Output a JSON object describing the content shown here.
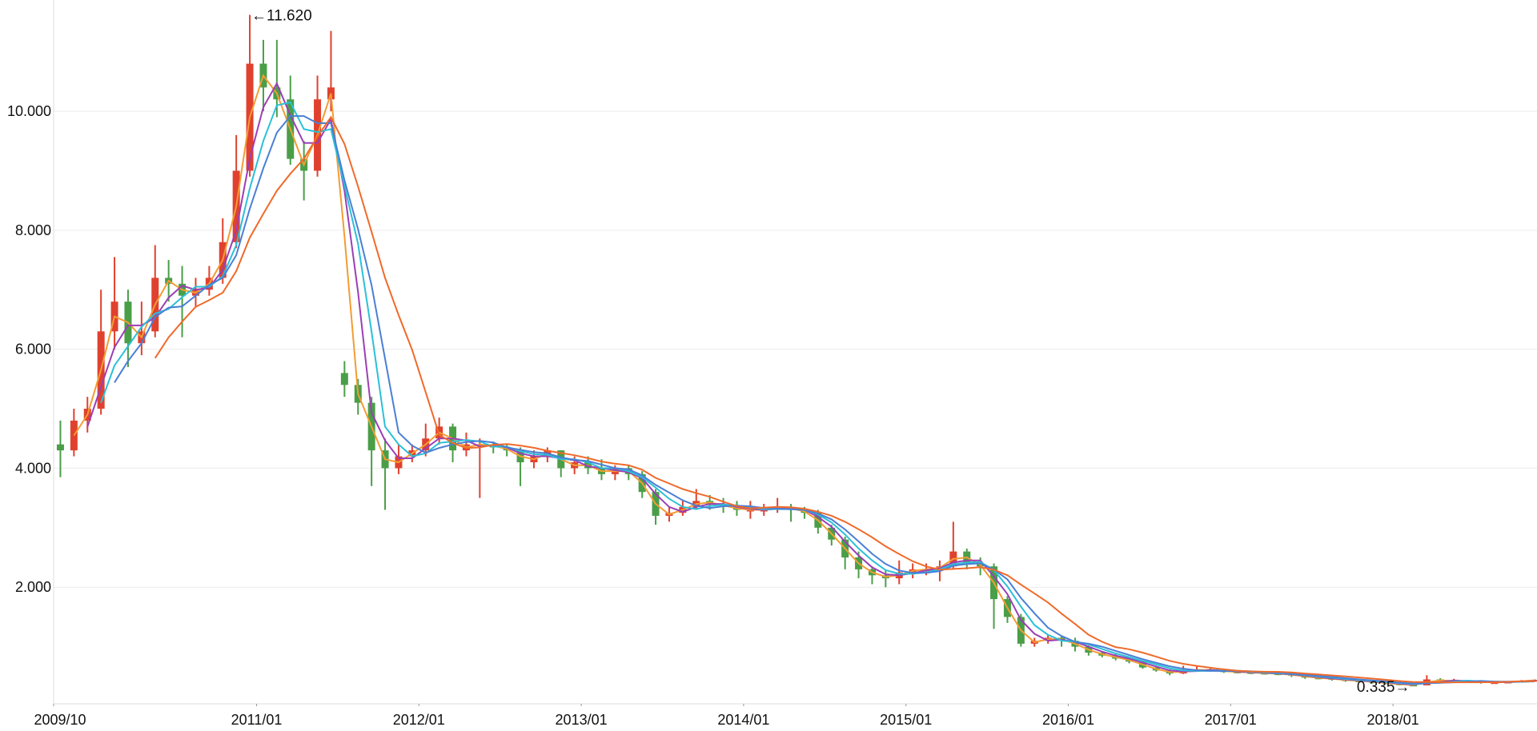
{
  "chart_data": {
    "type": "candlestick",
    "title": "",
    "xlabel": "",
    "ylabel": "",
    "ylim": [
      0.04,
      11.87
    ],
    "grid": true,
    "legend": "none",
    "y_ticks": [
      "2.000",
      "4.000",
      "6.000",
      "8.000",
      "10.000"
    ],
    "y_tick_values": [
      2,
      4,
      6,
      8,
      10
    ],
    "x_ticks": [
      "2009/10",
      "2011/01",
      "2012/01",
      "2013/01",
      "2014/01",
      "2015/01",
      "2016/01",
      "2017/01",
      "2018/01"
    ],
    "columns": [
      "date",
      "open",
      "high",
      "low",
      "close"
    ],
    "candles": [
      [
        "2009/10",
        4.4,
        4.8,
        3.85,
        4.3
      ],
      [
        "2009/11",
        4.3,
        5.0,
        4.2,
        4.8
      ],
      [
        "2009/12",
        4.8,
        5.2,
        4.6,
        5.0
      ],
      [
        "2010/01",
        5.0,
        7.0,
        4.9,
        6.3
      ],
      [
        "2010/02",
        6.3,
        7.55,
        6.0,
        6.8
      ],
      [
        "2010/03",
        6.8,
        7.0,
        5.7,
        6.1
      ],
      [
        "2010/04",
        6.1,
        6.8,
        5.9,
        6.3
      ],
      [
        "2010/05",
        6.3,
        7.75,
        6.2,
        7.2
      ],
      [
        "2010/06",
        7.2,
        7.5,
        6.8,
        7.1
      ],
      [
        "2010/07",
        7.1,
        7.4,
        6.2,
        6.9
      ],
      [
        "2010/08",
        6.9,
        7.2,
        6.7,
        7.0
      ],
      [
        "2010/09",
        7.0,
        7.4,
        6.9,
        7.2
      ],
      [
        "2010/10",
        7.2,
        8.2,
        7.1,
        7.8
      ],
      [
        "2010/11",
        7.8,
        9.6,
        7.7,
        9.0
      ],
      [
        "2010/12",
        9.0,
        11.62,
        8.9,
        10.8
      ],
      [
        "2011/01",
        10.8,
        11.2,
        10.0,
        10.4
      ],
      [
        "2011/02",
        10.4,
        11.2,
        9.9,
        10.2
      ],
      [
        "2011/03",
        10.2,
        10.6,
        9.1,
        9.2
      ],
      [
        "2011/04",
        9.2,
        9.5,
        8.5,
        9.0
      ],
      [
        "2011/05",
        9.0,
        10.6,
        8.9,
        10.2
      ],
      [
        "2011/06",
        10.2,
        11.35,
        10.0,
        10.4
      ],
      [
        "2011/07",
        5.6,
        5.8,
        5.2,
        5.4
      ],
      [
        "2011/08",
        5.4,
        5.5,
        4.9,
        5.1
      ],
      [
        "2011/09",
        5.1,
        5.2,
        3.7,
        4.3
      ],
      [
        "2011/10",
        4.3,
        4.5,
        3.3,
        4.0
      ],
      [
        "2011/11",
        4.0,
        4.4,
        3.9,
        4.2
      ],
      [
        "2011/12",
        4.2,
        4.4,
        4.1,
        4.3
      ],
      [
        "2012/01",
        4.3,
        4.75,
        4.2,
        4.5
      ],
      [
        "2012/02",
        4.5,
        4.85,
        4.4,
        4.7
      ],
      [
        "2012/03",
        4.7,
        4.75,
        4.1,
        4.3
      ],
      [
        "2012/04",
        4.3,
        4.6,
        4.2,
        4.4
      ],
      [
        "2012/05",
        4.4,
        4.5,
        3.5,
        4.4
      ],
      [
        "2012/06",
        4.4,
        4.45,
        4.25,
        4.35
      ],
      [
        "2012/07",
        4.35,
        4.4,
        4.2,
        4.3
      ],
      [
        "2012/08",
        4.3,
        4.35,
        3.7,
        4.1
      ],
      [
        "2012/09",
        4.1,
        4.3,
        4.0,
        4.2
      ],
      [
        "2012/10",
        4.2,
        4.35,
        4.1,
        4.3
      ],
      [
        "2012/11",
        4.3,
        4.3,
        3.85,
        4.0
      ],
      [
        "2012/12",
        4.0,
        4.2,
        3.9,
        4.1
      ],
      [
        "2013/01",
        4.1,
        4.2,
        3.9,
        4.0
      ],
      [
        "2013/02",
        4.0,
        4.15,
        3.8,
        3.9
      ],
      [
        "2013/03",
        3.9,
        4.05,
        3.8,
        4.0
      ],
      [
        "2013/04",
        4.0,
        4.05,
        3.8,
        3.9
      ],
      [
        "2013/05",
        3.9,
        3.95,
        3.5,
        3.6
      ],
      [
        "2013/06",
        3.6,
        3.65,
        3.05,
        3.2
      ],
      [
        "2013/07",
        3.2,
        3.35,
        3.1,
        3.25
      ],
      [
        "2013/08",
        3.25,
        3.45,
        3.2,
        3.35
      ],
      [
        "2013/09",
        3.35,
        3.65,
        3.3,
        3.45
      ],
      [
        "2013/10",
        3.45,
        3.55,
        3.3,
        3.4
      ],
      [
        "2013/11",
        3.4,
        3.5,
        3.25,
        3.35
      ],
      [
        "2013/12",
        3.35,
        3.45,
        3.2,
        3.3
      ],
      [
        "2014/01",
        3.3,
        3.45,
        3.15,
        3.3
      ],
      [
        "2014/02",
        3.3,
        3.4,
        3.2,
        3.3
      ],
      [
        "2014/03",
        3.3,
        3.5,
        3.25,
        3.35
      ],
      [
        "2014/04",
        3.35,
        3.4,
        3.1,
        3.3
      ],
      [
        "2014/05",
        3.3,
        3.35,
        3.15,
        3.25
      ],
      [
        "2014/06",
        3.25,
        3.3,
        2.9,
        3.0
      ],
      [
        "2014/07",
        3.0,
        3.05,
        2.7,
        2.8
      ],
      [
        "2014/08",
        2.8,
        2.85,
        2.3,
        2.5
      ],
      [
        "2014/09",
        2.5,
        2.6,
        2.15,
        2.3
      ],
      [
        "2014/10",
        2.3,
        2.35,
        2.05,
        2.2
      ],
      [
        "2014/11",
        2.2,
        2.3,
        2.0,
        2.15
      ],
      [
        "2014/12",
        2.15,
        2.45,
        2.05,
        2.25
      ],
      [
        "2015/01",
        2.25,
        2.4,
        2.15,
        2.3
      ],
      [
        "2015/02",
        2.3,
        2.4,
        2.2,
        2.3
      ],
      [
        "2015/03",
        2.3,
        2.45,
        2.1,
        2.35
      ],
      [
        "2015/04",
        2.35,
        3.1,
        2.3,
        2.6
      ],
      [
        "2015/05",
        2.6,
        2.65,
        2.3,
        2.4
      ],
      [
        "2015/06",
        2.4,
        2.5,
        2.2,
        2.35
      ],
      [
        "2015/07",
        2.35,
        2.4,
        1.3,
        1.8
      ],
      [
        "2015/08",
        1.8,
        1.85,
        1.4,
        1.5
      ],
      [
        "2015/09",
        1.5,
        1.55,
        1.0,
        1.05
      ],
      [
        "2015/10",
        1.05,
        1.15,
        1.0,
        1.1
      ],
      [
        "2015/11",
        1.1,
        1.2,
        1.05,
        1.15
      ],
      [
        "2015/12",
        1.15,
        1.18,
        1.0,
        1.1
      ],
      [
        "2016/01",
        1.1,
        1.15,
        0.92,
        1.0
      ],
      [
        "2016/02",
        1.0,
        1.02,
        0.85,
        0.9
      ],
      [
        "2016/03",
        0.9,
        0.92,
        0.82,
        0.85
      ],
      [
        "2016/04",
        0.85,
        0.88,
        0.77,
        0.8
      ],
      [
        "2016/05",
        0.8,
        0.82,
        0.72,
        0.75
      ],
      [
        "2016/06",
        0.75,
        0.76,
        0.63,
        0.65
      ],
      [
        "2016/07",
        0.65,
        0.67,
        0.58,
        0.6
      ],
      [
        "2016/08",
        0.6,
        0.62,
        0.52,
        0.55
      ],
      [
        "2016/09",
        0.55,
        0.68,
        0.54,
        0.6
      ],
      [
        "2016/10",
        0.6,
        0.68,
        0.58,
        0.62
      ],
      [
        "2016/11",
        0.62,
        0.64,
        0.58,
        0.6
      ],
      [
        "2016/12",
        0.6,
        0.62,
        0.56,
        0.58
      ],
      [
        "2017/01",
        0.58,
        0.6,
        0.55,
        0.57
      ],
      [
        "2017/02",
        0.57,
        0.59,
        0.54,
        0.56
      ],
      [
        "2017/03",
        0.56,
        0.58,
        0.53,
        0.55
      ],
      [
        "2017/04",
        0.55,
        0.57,
        0.52,
        0.54
      ],
      [
        "2017/05",
        0.54,
        0.55,
        0.49,
        0.52
      ],
      [
        "2017/06",
        0.52,
        0.53,
        0.46,
        0.48
      ],
      [
        "2017/07",
        0.48,
        0.5,
        0.45,
        0.47
      ],
      [
        "2017/08",
        0.47,
        0.48,
        0.43,
        0.45
      ],
      [
        "2017/09",
        0.45,
        0.46,
        0.41,
        0.43
      ],
      [
        "2017/10",
        0.43,
        0.44,
        0.4,
        0.42
      ],
      [
        "2017/11",
        0.42,
        0.43,
        0.38,
        0.4
      ],
      [
        "2017/12",
        0.4,
        0.41,
        0.37,
        0.38
      ],
      [
        "2018/01",
        0.38,
        0.39,
        0.35,
        0.36
      ],
      [
        "2018/02",
        0.36,
        0.37,
        0.335,
        0.35
      ],
      [
        "2018/03",
        0.35,
        0.52,
        0.35,
        0.45
      ],
      [
        "2018/04",
        0.45,
        0.47,
        0.4,
        0.42
      ],
      [
        "2018/05",
        0.42,
        0.46,
        0.41,
        0.43
      ],
      [
        "2018/06",
        0.43,
        0.44,
        0.4,
        0.42
      ],
      [
        "2018/07",
        0.42,
        0.43,
        0.38,
        0.4
      ],
      [
        "2018/08",
        0.4,
        0.42,
        0.38,
        0.4
      ],
      [
        "2018/09",
        0.4,
        0.42,
        0.39,
        0.41
      ],
      [
        "2018/10",
        0.41,
        0.44,
        0.4,
        0.43
      ],
      [
        "2018/11",
        0.43,
        0.45,
        0.42,
        0.44
      ]
    ],
    "moving_average_colors": [
      "#f39c33",
      "#9b3fb5",
      "#2bc0d8",
      "#4a7fd6",
      "#f06a2a"
    ],
    "up_color": "#e0412e",
    "down_color": "#4a9e48",
    "annotations": [
      {
        "text": "←11.620",
        "date": "2010/12",
        "value": 11.62,
        "kind": "max"
      },
      {
        "text": "0.335→",
        "date": "2018/02",
        "value": 0.335,
        "kind": "min"
      }
    ]
  }
}
